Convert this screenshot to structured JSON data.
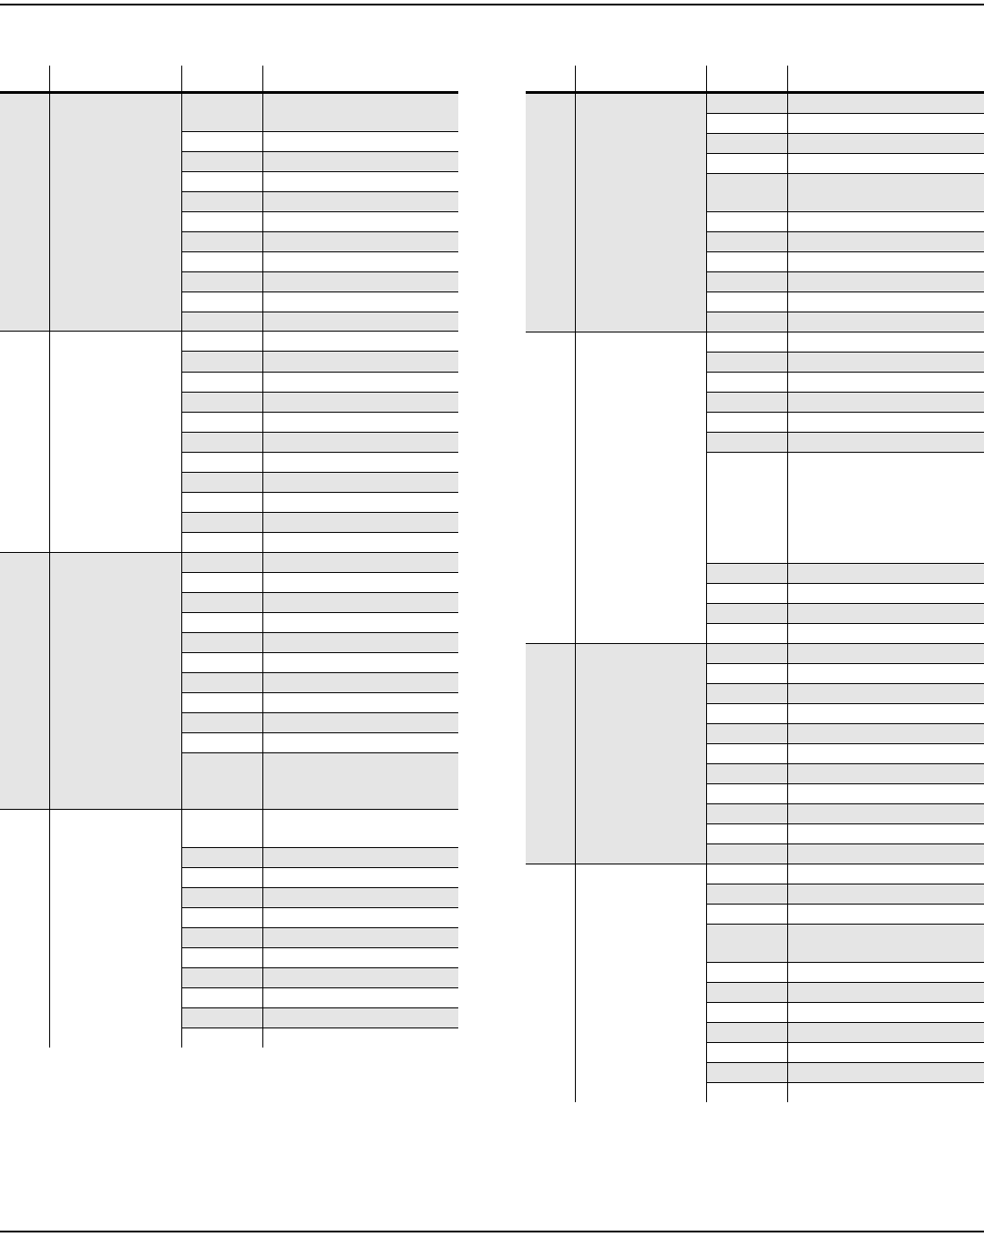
{
  "colors": {
    "shade": "#e5e5e5",
    "rule": "#000000",
    "background": "#ffffff"
  },
  "tables": [
    {
      "name": "left-table",
      "header": [
        "",
        "",
        "",
        ""
      ]
    },
    {
      "name": "right-table",
      "header": [
        "",
        "",
        "",
        ""
      ]
    }
  ]
}
